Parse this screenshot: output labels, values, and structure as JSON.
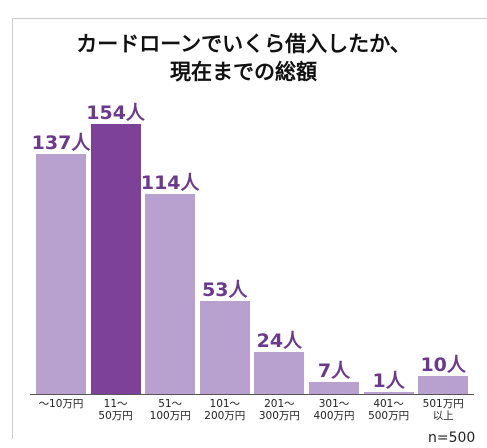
{
  "chart_data": {
    "type": "bar",
    "title": "カードローンでいくら借入したか、\n現在までの総額",
    "categories": [
      "〜10万円",
      "11〜\n50万円",
      "51〜\n100万円",
      "101〜\n200万円",
      "201〜\n300万円",
      "301〜\n400万円",
      "401〜\n500万円",
      "501万円\n以上"
    ],
    "values": [
      137,
      154,
      114,
      53,
      24,
      7,
      1,
      10
    ],
    "value_labels": [
      "137人",
      "154人",
      "114人",
      "53人",
      "24人",
      "7人",
      "1人",
      "10人"
    ],
    "colors": [
      "#b9a1cf",
      "#7d4199",
      "#b9a1cf",
      "#b9a1cf",
      "#b9a1cf",
      "#b9a1cf",
      "#b9a1cf",
      "#b9a1cf"
    ],
    "annotation": "n=500"
  }
}
